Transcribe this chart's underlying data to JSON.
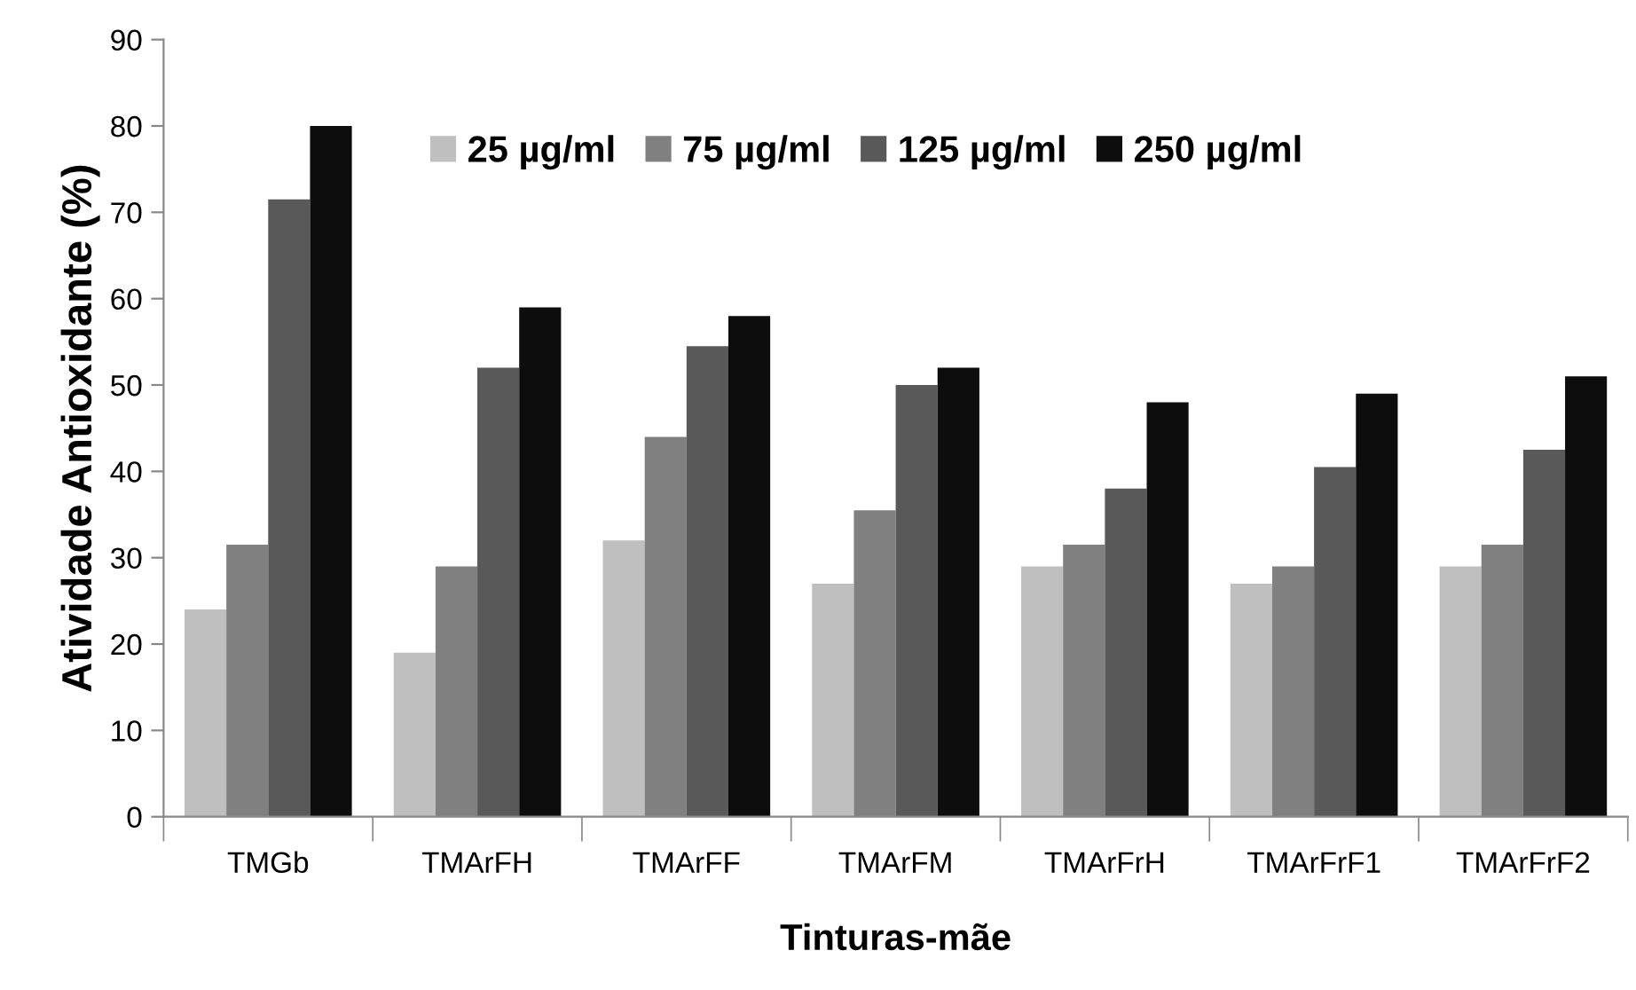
{
  "chart_data": {
    "type": "bar",
    "xlabel": "Tinturas-mãe",
    "ylabel": "Atividade Antioxidante (%)",
    "categories": [
      "TMGb",
      "TMArFH",
      "TMArFF",
      "TMArFM",
      "TMArFrH",
      "TMArFrF1",
      "TMArFrF2"
    ],
    "series": [
      {
        "name": "25 µg/ml",
        "color": "#bfbfbf",
        "values": [
          24,
          19,
          32,
          27,
          29,
          27,
          29
        ]
      },
      {
        "name": "75 µg/ml",
        "color": "#808080",
        "values": [
          31.5,
          29,
          44,
          35.5,
          31.5,
          29,
          31.5
        ]
      },
      {
        "name": "125 µg/ml",
        "color": "#595959",
        "values": [
          71.5,
          52,
          54.5,
          50,
          38,
          40.5,
          42.5
        ]
      },
      {
        "name": "250 µg/ml",
        "color": "#0d0d0d",
        "values": [
          80,
          59,
          58,
          52,
          48,
          49,
          51
        ]
      }
    ],
    "ylim": [
      0,
      90
    ],
    "yticks": [
      0,
      10,
      20,
      30,
      40,
      50,
      60,
      70,
      80,
      90
    ],
    "grid": false,
    "legend": "top"
  }
}
